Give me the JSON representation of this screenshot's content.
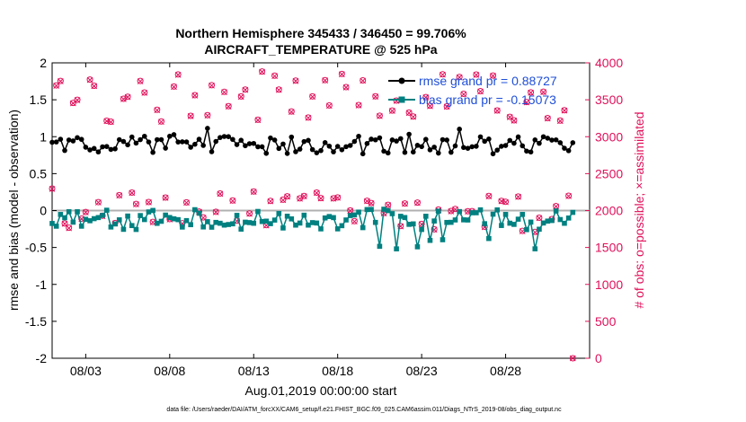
{
  "chart_data": {
    "type": "line",
    "title_line1": "Northern Hemisphere 345433 / 346450 = 99.706%",
    "title_line2": "AIRCRAFT_TEMPERATURE @ 525 hPa",
    "xlabel": "Aug.01,2019 00:00:00 start",
    "ylabel_left": "rmse and bias (model - observation)",
    "ylabel_right": "# of obs: o=possible; ×=assimilated",
    "xlim": [
      1,
      33
    ],
    "ylim_left": [
      -2,
      2
    ],
    "ylim_right": [
      0,
      4000
    ],
    "x_ticks": [
      3,
      8,
      13,
      18,
      23,
      28
    ],
    "x_tick_labels": [
      "08/03",
      "08/08",
      "08/13",
      "08/18",
      "08/23",
      "08/28"
    ],
    "y_ticks_left": [
      -2,
      -1.5,
      -1,
      -0.5,
      0,
      0.5,
      1,
      1.5,
      2
    ],
    "y_tick_labels_left": [
      "-2",
      "-1.5",
      "-1",
      "-0.5",
      "0",
      "0.5",
      "1",
      "1.5",
      "2"
    ],
    "y_ticks_right": [
      0,
      500,
      1000,
      1500,
      2000,
      2500,
      3000,
      3500,
      4000
    ],
    "y_tick_labels_right": [
      "0",
      "500",
      "1000",
      "1500",
      "2000",
      "2500",
      "3000",
      "3500",
      "4000"
    ],
    "legend": [
      {
        "label": "rmse grand pr = 0.88727",
        "color": "#000000"
      },
      {
        "label": "bias grand pr = -0.15073",
        "color": "#008080"
      }
    ],
    "colors": {
      "rmse": "#000000",
      "bias": "#008080",
      "obs": "#e0105a",
      "legend_text": "#1f4fd8",
      "zero_line": "#b0b0b0"
    },
    "rmse_summary": {
      "mean": 0.887,
      "min": 0.72,
      "max": 1.17
    },
    "bias_summary": {
      "mean": -0.151,
      "min": -0.55,
      "max": 0.08
    },
    "obs_summary": {
      "low_band": [
        1700,
        2300
      ],
      "high_band": [
        3200,
        3900
      ],
      "last_value": 0
    },
    "footer": "data file: /Users/raeder/DAI/ATM_forcXX/CAM6_setup/f.e21.FHIST_BGC.f09_025.CAM6assim.011/Diags_NTrS_2019-08/obs_diag_output.nc"
  }
}
